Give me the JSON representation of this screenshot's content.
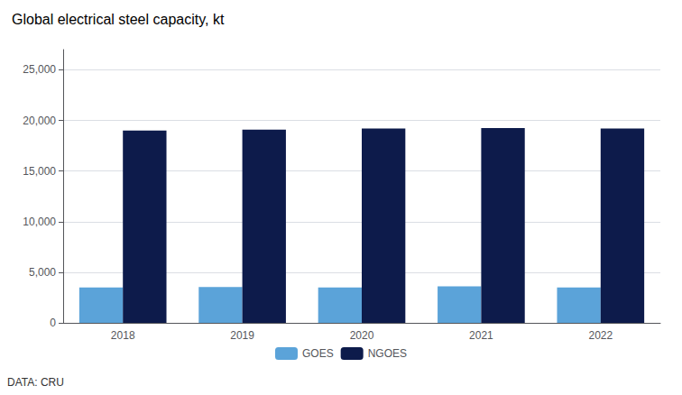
{
  "chart_data": {
    "type": "bar",
    "title": "Global electrical steel capacity, kt",
    "categories": [
      "2018",
      "2019",
      "2020",
      "2021",
      "2022"
    ],
    "series": [
      {
        "name": "GOES",
        "color": "#5ba3d9",
        "values": [
          3500,
          3550,
          3500,
          3600,
          3500
        ]
      },
      {
        "name": "NGOES",
        "color": "#0d1b4b",
        "values": [
          19000,
          19100,
          19200,
          19250,
          19200
        ]
      }
    ],
    "ylim": [
      0,
      27000
    ],
    "yticks": [
      0,
      {
        "value": 5000,
        "label": "5,000"
      },
      {
        "value": 10000,
        "label": "10,000"
      },
      {
        "value": 15000,
        "label": "15,000"
      },
      {
        "value": 20000,
        "label": "20,000"
      },
      {
        "value": 25000,
        "label": "25,000"
      }
    ],
    "grid": true,
    "legend": "bottom",
    "footnote": "DATA: CRU"
  }
}
